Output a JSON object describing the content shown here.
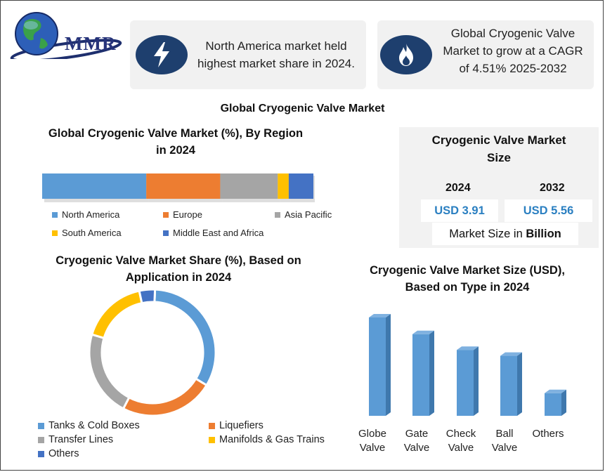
{
  "logo": {
    "text": "MMR"
  },
  "cards": [
    {
      "text": "North America market held highest market share in 2024.",
      "icon": "lightning-icon"
    },
    {
      "text": "Global Cryogenic Valve Market to grow at a CAGR of 4.51% 2025-2032",
      "icon": "flame-icon"
    }
  ],
  "main_title": "Global Cryogenic Valve Market",
  "region_section": {
    "title_line1": "Global Cryogenic Valve Market (%), By Region",
    "title_line2": "in 2024"
  },
  "size_panel": {
    "title_line1": "Cryogenic Valve Market",
    "title_line2": "Size",
    "year1": "2024",
    "year2": "2032",
    "value1": "USD 3.91",
    "value2": "USD 5.56",
    "unit_prefix": "Market Size in ",
    "unit_bold": "Billion"
  },
  "application_section": {
    "title_line1": "Cryogenic Valve Market Share (%), Based on",
    "title_line2": "Application in 2024"
  },
  "type_section": {
    "title_line1": "Cryogenic Valve Market Size (USD),",
    "title_line2": "Based on Type in 2024"
  },
  "chart_data": [
    {
      "type": "bar",
      "orientation": "horizontal-stacked",
      "categories": [
        "North America",
        "Europe",
        "Asia Pacific",
        "South America",
        "Middle East and Africa"
      ],
      "values": [
        38,
        27,
        21,
        4,
        9
      ],
      "colors": [
        "#5b9bd5",
        "#ed7d31",
        "#a5a5a5",
        "#ffc000",
        "#4472c4"
      ]
    },
    {
      "type": "pie",
      "style": "donut",
      "categories": [
        "Tanks & Cold Boxes",
        "Liquefiers",
        "Transfer Lines",
        "Manifolds & Gas Trains",
        "Others"
      ],
      "values": [
        33,
        24,
        22,
        17,
        4
      ],
      "colors": [
        "#5b9bd5",
        "#ed7d31",
        "#a5a5a5",
        "#ffc000",
        "#4472c4"
      ]
    },
    {
      "type": "bar",
      "categories": [
        "Globe Valve",
        "Gate Valve",
        "Check Valve",
        "Ball Valve",
        "Others"
      ],
      "x_labels": [
        [
          "Globe",
          "Valve"
        ],
        [
          "Gate",
          "Valve"
        ],
        [
          "Check",
          "Valve"
        ],
        [
          "Ball",
          "Valve"
        ],
        [
          "Others",
          ""
        ]
      ],
      "values": [
        100,
        83,
        67,
        61,
        23
      ],
      "color": "#5b9bd5",
      "grid": false
    }
  ]
}
